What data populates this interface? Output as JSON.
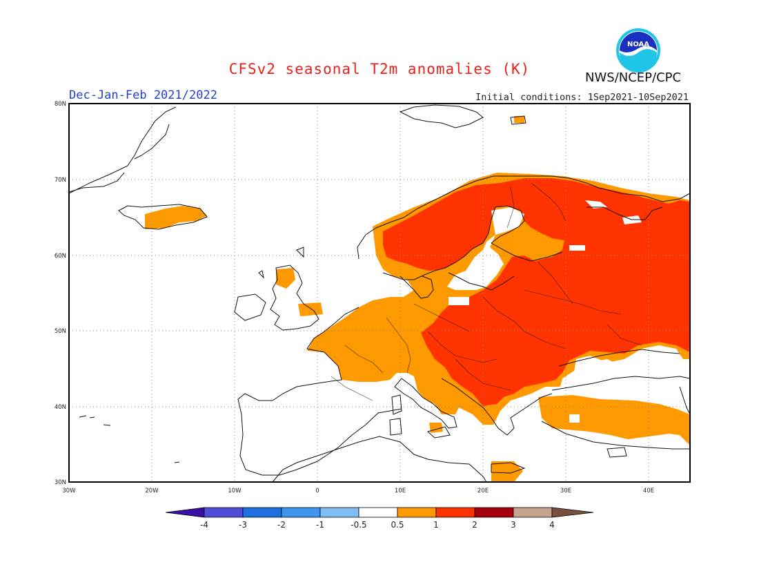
{
  "header": {
    "title": "CFSv2 seasonal T2m anomalies (K)",
    "season": "Dec-Jan-Feb 2021/2022",
    "initial_conditions": "Initial conditions: 1Sep2021-10Sep2021",
    "agency": "NWS/NCEP/CPC",
    "logo_text": "NOAA"
  },
  "map": {
    "region": "Europe",
    "lon_range": [
      -30,
      45
    ],
    "lat_range": [
      30,
      80
    ],
    "lat_labels": [
      "80N",
      "70N",
      "60N",
      "50N",
      "40N",
      "30N"
    ],
    "lon_labels": [
      "30W",
      "20W",
      "10W",
      "0",
      "10E",
      "20E",
      "30E",
      "40E"
    ],
    "anomaly_colors": {
      "0.5-1": "#ff9900",
      "1-2": "#ff3300",
      "2-3": "#b0000a"
    }
  },
  "colorbar": {
    "tick_labels": [
      "-4",
      "-3",
      "-2",
      "-1",
      "-0.5",
      "0.5",
      "1",
      "2",
      "3",
      "4"
    ],
    "colors": [
      "#3a0fa8",
      "#4e4fd6",
      "#1e6fe0",
      "#3d96f0",
      "#80bdf2",
      "#ffffff",
      "#ff9900",
      "#ff3300",
      "#a5000c",
      "#c6a28f",
      "#7a4f3d"
    ]
  }
}
